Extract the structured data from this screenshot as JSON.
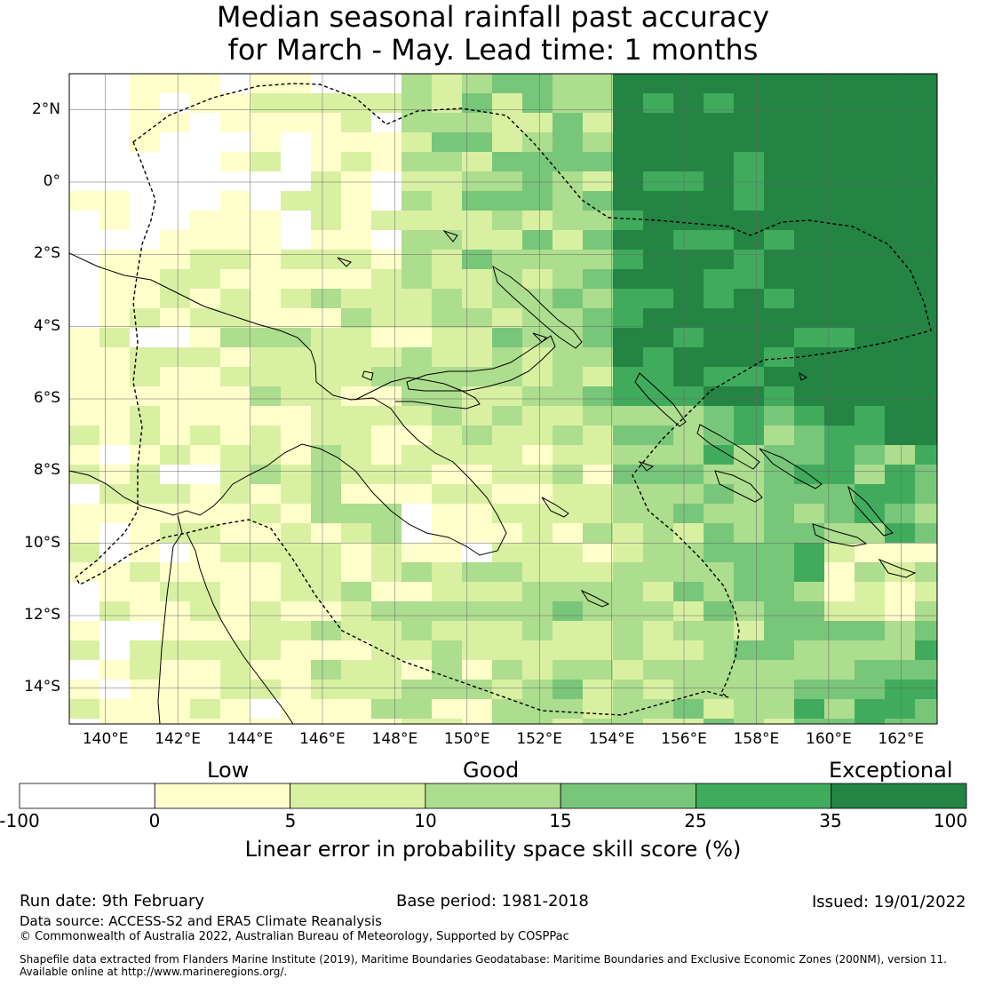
{
  "title": {
    "line1": "Median seasonal rainfall past accuracy",
    "line2": "for March - May. Lead time: 1 months"
  },
  "map": {
    "lat_labels": [
      "2°N",
      "0°",
      "2°S",
      "4°S",
      "6°S",
      "8°S",
      "10°S",
      "12°S",
      "14°S"
    ],
    "lat_values": [
      2,
      0,
      -2,
      -4,
      -6,
      -8,
      -10,
      -12,
      -14
    ],
    "lon_labels": [
      "140°E",
      "142°E",
      "144°E",
      "146°E",
      "148°E",
      "150°E",
      "152°E",
      "154°E",
      "156°E",
      "158°E",
      "160°E",
      "162°E"
    ],
    "lon_values": [
      140,
      142,
      144,
      146,
      148,
      150,
      152,
      154,
      156,
      158,
      160,
      162
    ],
    "lon_range": [
      139,
      163
    ],
    "lat_range": [
      -15,
      3
    ]
  },
  "colorbar": {
    "category_labels": [
      "Low",
      "Good",
      "Exceptional"
    ],
    "ticks": [
      "-100",
      "0",
      "5",
      "10",
      "15",
      "25",
      "35",
      "100"
    ],
    "colors": [
      "#ffffff",
      "#ffffcc",
      "#d9f0a3",
      "#addd8e",
      "#78c679",
      "#41ab5d",
      "#238443"
    ],
    "title": "Linear error in probability space skill score (%)"
  },
  "footer": {
    "run_date": "Run date: 9th February",
    "base_period": "Base period: 1981-2018",
    "issued": "Issued: 19/01/2022",
    "data_source": "Data source: ACCESS-S2 and ERA5 Climate Reanalysis",
    "copyright": "© Commonwealth of Australia 2022, Australian Bureau of Meteorology, Supported by COSPPac",
    "shapefile_line1": "Shapefile data extracted from Flanders Marine Institute (2019), Maritime Boundaries Geodatabase: Maritime Boundaries and Exclusive Economic Zones (200NM), version 11.",
    "shapefile_line2": "Available online at http://www.marineregions.org/."
  }
}
